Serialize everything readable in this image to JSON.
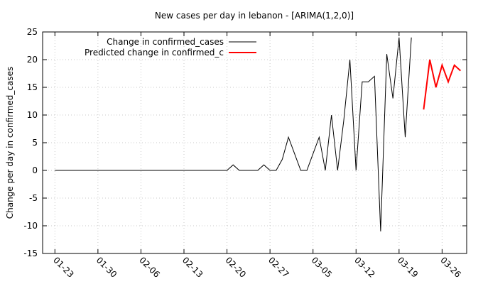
{
  "chart_data": {
    "type": "line",
    "title": "New cases per day in lebanon -  [ARIMA(1,2,0)]",
    "xlabel": "",
    "ylabel": "Change per day in confirmed_cases",
    "x_type": "date",
    "xlim": [
      "01-21",
      "03-30"
    ],
    "ylim": [
      -15,
      25
    ],
    "y_ticks": [
      -15,
      -10,
      -5,
      0,
      5,
      10,
      15,
      20,
      25
    ],
    "x_ticks": [
      "01-23",
      "01-30",
      "02-06",
      "02-13",
      "02-20",
      "02-27",
      "03-05",
      "03-12",
      "03-19",
      "03-26"
    ],
    "grid": true,
    "legend": "top-left",
    "series": [
      {
        "name": "Change in confirmed_cases",
        "color": "#000000",
        "points": [
          [
            "01-23",
            0
          ],
          [
            "01-24",
            0
          ],
          [
            "01-25",
            0
          ],
          [
            "01-26",
            0
          ],
          [
            "01-27",
            0
          ],
          [
            "01-28",
            0
          ],
          [
            "01-29",
            0
          ],
          [
            "01-30",
            0
          ],
          [
            "01-31",
            0
          ],
          [
            "02-01",
            0
          ],
          [
            "02-02",
            0
          ],
          [
            "02-03",
            0
          ],
          [
            "02-04",
            0
          ],
          [
            "02-05",
            0
          ],
          [
            "02-06",
            0
          ],
          [
            "02-07",
            0
          ],
          [
            "02-08",
            0
          ],
          [
            "02-09",
            0
          ],
          [
            "02-10",
            0
          ],
          [
            "02-11",
            0
          ],
          [
            "02-12",
            0
          ],
          [
            "02-13",
            0
          ],
          [
            "02-14",
            0
          ],
          [
            "02-15",
            0
          ],
          [
            "02-16",
            0
          ],
          [
            "02-17",
            0
          ],
          [
            "02-18",
            0
          ],
          [
            "02-19",
            0
          ],
          [
            "02-20",
            0
          ],
          [
            "02-21",
            1
          ],
          [
            "02-22",
            0
          ],
          [
            "02-23",
            0
          ],
          [
            "02-24",
            0
          ],
          [
            "02-25",
            0
          ],
          [
            "02-26",
            1
          ],
          [
            "02-27",
            0
          ],
          [
            "02-28",
            0
          ],
          [
            "02-29",
            2
          ],
          [
            "03-01",
            6
          ],
          [
            "03-02",
            3
          ],
          [
            "03-03",
            0
          ],
          [
            "03-04",
            0
          ],
          [
            "03-05",
            3
          ],
          [
            "03-06",
            6
          ],
          [
            "03-07",
            0
          ],
          [
            "03-08",
            10
          ],
          [
            "03-09",
            0
          ],
          [
            "03-10",
            9
          ],
          [
            "03-11",
            20
          ],
          [
            "03-12",
            0
          ],
          [
            "03-13",
            16
          ],
          [
            "03-14",
            16
          ],
          [
            "03-15",
            17
          ],
          [
            "03-16",
            -11
          ],
          [
            "03-17",
            21
          ],
          [
            "03-18",
            13
          ],
          [
            "03-19",
            24
          ],
          [
            "03-20",
            6
          ],
          [
            "03-21",
            24
          ]
        ]
      },
      {
        "name": "Predicted change in confirmed_c",
        "color": "#ff0000",
        "points": [
          [
            "03-23",
            11
          ],
          [
            "03-24",
            20
          ],
          [
            "03-25",
            15
          ],
          [
            "03-26",
            19
          ],
          [
            "03-27",
            16
          ],
          [
            "03-28",
            19
          ],
          [
            "03-29",
            18
          ]
        ]
      }
    ]
  }
}
